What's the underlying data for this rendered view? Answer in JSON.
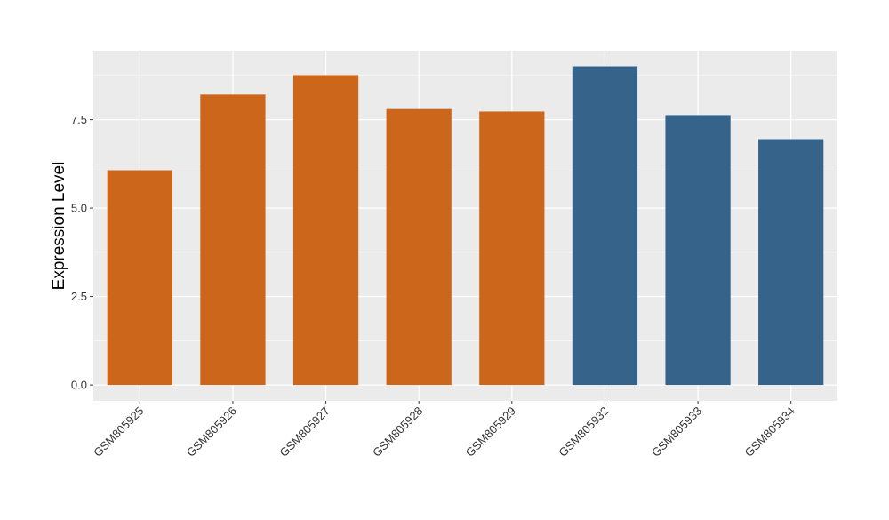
{
  "chart_data": {
    "type": "bar",
    "title": "",
    "xlabel": "",
    "ylabel": "Expression Level",
    "ylim": [
      -0.45,
      9.45
    ],
    "yticks": [
      0,
      2.5,
      5,
      7.5
    ],
    "ytick_labels": [
      "0.0",
      "2.5",
      "5.0",
      "7.5"
    ],
    "grid": true,
    "categories": [
      "GSM805925",
      "GSM805926",
      "GSM805927",
      "GSM805928",
      "GSM805929",
      "GSM805932",
      "GSM805933",
      "GSM805934"
    ],
    "values": [
      6.07,
      8.21,
      8.76,
      7.8,
      7.73,
      9.01,
      7.63,
      6.95
    ],
    "groups": [
      "a",
      "a",
      "a",
      "a",
      "a",
      "b",
      "b",
      "b"
    ],
    "colors": {
      "a": "#CC661A",
      "b": "#35638A"
    },
    "panel_background": "#EBEBEB"
  }
}
